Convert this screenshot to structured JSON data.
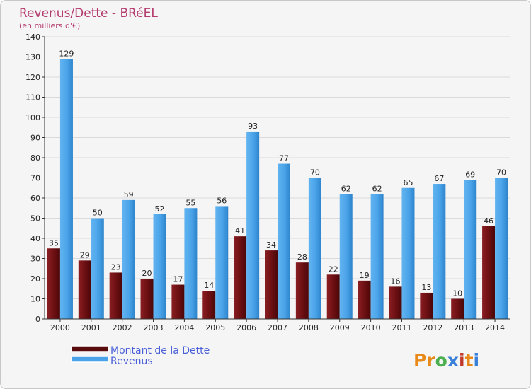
{
  "chart_data": {
    "type": "bar",
    "title": "Revenus/Dette - BRéEL",
    "subtitle": "(en milliers d'€)",
    "categories": [
      "2000",
      "2001",
      "2002",
      "2003",
      "2004",
      "2005",
      "2006",
      "2007",
      "2008",
      "2009",
      "2010",
      "2011",
      "2012",
      "2013",
      "2014"
    ],
    "series": [
      {
        "name": "Montant de la Dette",
        "color": "#6b0f12",
        "values": [
          35,
          29,
          23,
          20,
          17,
          14,
          41,
          34,
          28,
          22,
          19,
          16,
          13,
          10,
          46
        ]
      },
      {
        "name": "Revenus",
        "color": "#4aa3e8",
        "values": [
          129,
          50,
          59,
          52,
          55,
          56,
          93,
          77,
          70,
          62,
          62,
          65,
          67,
          69,
          70
        ]
      }
    ],
    "ylim": [
      0,
      140
    ],
    "yticks": [
      0,
      10,
      20,
      30,
      40,
      50,
      60,
      70,
      80,
      90,
      100,
      110,
      120,
      130,
      140
    ],
    "grid": true,
    "legend": "bottom-left",
    "xlabel": "",
    "ylabel": ""
  },
  "brand": {
    "logo_letters": [
      "P",
      "r",
      "o",
      "x",
      "i",
      "t",
      "i"
    ],
    "logo_colors": [
      "#e88a1a",
      "#e88a1a",
      "#4caf50",
      "#3a7fd8",
      "#c0392b",
      "#e88a1a",
      "#3a7fd8"
    ]
  }
}
